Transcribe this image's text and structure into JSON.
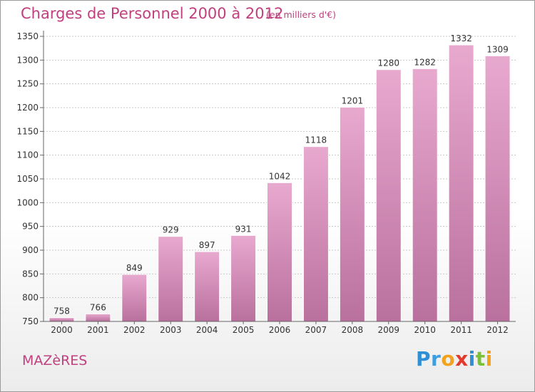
{
  "title": "Charges de Personnel 2000 à 2012",
  "subtitle": "(en milliers d'€)",
  "commune": "MAZèRES",
  "logo": {
    "letters": [
      {
        "char": "P",
        "color": "#2e8fd6"
      },
      {
        "char": "r",
        "color": "#3a9ee0"
      },
      {
        "char": "o",
        "color": "#f2a21d"
      },
      {
        "char": "x",
        "color": "#e23b2d"
      },
      {
        "char": "i",
        "color": "#2e8fd6"
      },
      {
        "char": "t",
        "color": "#7bbf3a"
      },
      {
        "char": "i",
        "color": "#f2a21d"
      }
    ]
  },
  "colors": {
    "bar_light": "#e8a9cf",
    "bar_dark": "#b9709d",
    "text": "#333333",
    "title": "#c0407e"
  },
  "chart_data": {
    "type": "bar",
    "categories": [
      "2000",
      "2001",
      "2002",
      "2003",
      "2004",
      "2005",
      "2006",
      "2007",
      "2008",
      "2009",
      "2010",
      "2011",
      "2012"
    ],
    "values": [
      758,
      766,
      849,
      929,
      897,
      931,
      1042,
      1118,
      1201,
      1280,
      1282,
      1332,
      1309
    ],
    "data_labels": [
      "758",
      "766",
      "849",
      "929",
      "897",
      "931",
      "1042",
      "1118",
      "1201",
      "1280",
      "1282",
      "1332",
      "1309"
    ],
    "ylim": [
      750,
      1350
    ],
    "yticks": [
      750,
      800,
      850,
      900,
      950,
      1000,
      1050,
      1100,
      1150,
      1200,
      1250,
      1300,
      1350
    ],
    "grid": true
  }
}
